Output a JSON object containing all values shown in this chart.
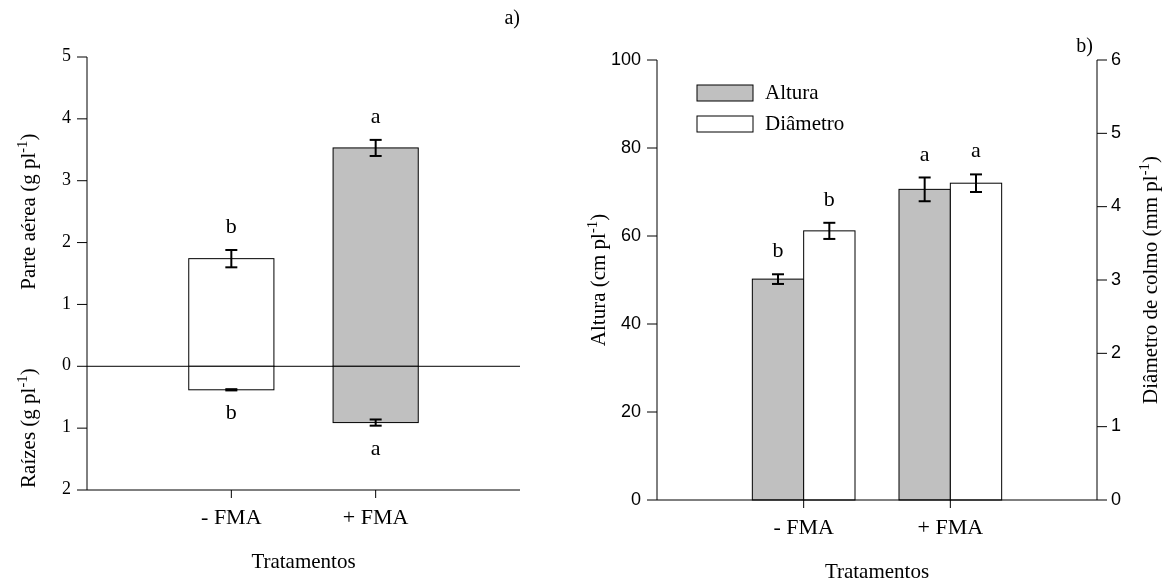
{
  "chart_data": [
    {
      "type": "bar",
      "title": "a)",
      "xlabel": "Tratamentos",
      "ylabel": "Parte aérea (g pl$^{-1}$)",
      "stacked": true,
      "categories": [
        "- FMA",
        "+ FMA"
      ],
      "series": [
        {
          "colors": [
            "#ffffff",
            "#c0c0c0"
          ],
          "values": [
            1.74,
            3.53
          ],
          "errors": [
            0.14,
            0.13
          ]
        },
        {
          "colors": [
            "#ffffff",
            "#c0c0c0"
          ],
          "values": [
            -0.38,
            -0.91
          ],
          "errors": [
            0.01,
            0.05
          ]
        }
      ],
      "ylim": [
        -2,
        5
      ],
      "yticks": [
        {
          "value": -2,
          "label": "2"
        },
        {
          "value": -1,
          "label": "1"
        },
        0,
        1,
        2,
        3,
        4,
        5
      ],
      "ref_lines": [
        {
          "axis": "y",
          "value": 0
        }
      ],
      "annotations": [
        "Raízes (g pl$^{-1}$)",
        "b",
        "a",
        "b",
        "a"
      ]
    },
    {
      "type": "bar",
      "title": "b)",
      "xlabel": "Tratamentos",
      "ylabel": "Altura (cm pl$^{-1}$)",
      "y2label": "Diâmetro de colmo (mm pl$^{-1}$)",
      "categories": [
        "- FMA",
        "+ FMA"
      ],
      "legend": "top left",
      "series": [
        {
          "name": "Altura",
          "color": "#c0c0c0",
          "values": [
            50.2,
            70.6
          ],
          "errors": [
            1.1,
            2.7
          ]
        },
        {
          "name": "Diâmetro",
          "color": "#ffffff",
          "axis": "y2",
          "values": [
            3.67,
            4.32
          ],
          "errors": [
            0.11,
            0.12
          ]
        }
      ],
      "ylim": [
        0,
        100
      ],
      "yticks": [
        0,
        20,
        40,
        60,
        80,
        100
      ],
      "y2lim": [
        0,
        6
      ],
      "y2ticks": [
        0,
        1,
        2,
        3,
        4,
        5,
        6
      ],
      "annotations": [
        "b",
        "a",
        "b",
        "a"
      ]
    }
  ]
}
